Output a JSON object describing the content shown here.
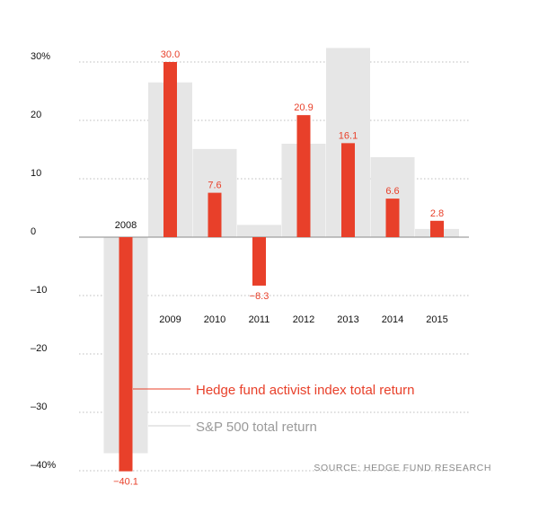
{
  "chart_data": {
    "type": "bar",
    "categories": [
      "2008",
      "2009",
      "2010",
      "2011",
      "2012",
      "2013",
      "2014",
      "2015"
    ],
    "series": [
      {
        "name": "Hedge fund activist index total return",
        "values": [
          -40.1,
          30.0,
          7.6,
          -8.3,
          20.9,
          16.1,
          6.6,
          2.8
        ],
        "labels": [
          "−40.1",
          "30.0",
          "7.6",
          "−8.3",
          "20.9",
          "16.1",
          "6.6",
          "2.8"
        ],
        "color": "#e8402a"
      },
      {
        "name": "S&P 500 total return",
        "values": [
          -37.0,
          26.5,
          15.1,
          2.1,
          16.0,
          32.4,
          13.7,
          1.4
        ],
        "color": "#e6e6e6"
      }
    ],
    "y_ticks": [
      30,
      20,
      10,
      0,
      -10,
      -20,
      -30,
      -40
    ],
    "y_tick_labels": [
      "30%",
      "20",
      "10",
      "0",
      "–10",
      "–20",
      "–30",
      "–40%"
    ],
    "ylim": [
      -40,
      30
    ],
    "grid": true,
    "source": "SOURCE: HEDGE FUND RESEARCH",
    "label_color": "#e8402a",
    "source_color": "#8a8a8a"
  }
}
